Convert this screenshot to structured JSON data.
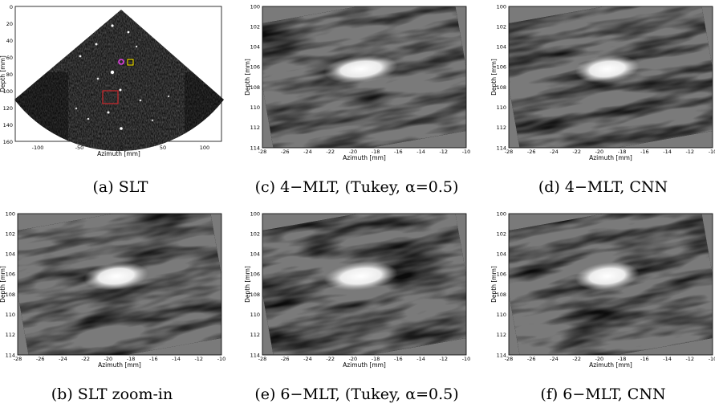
{
  "colors": {
    "background": "#ffffff",
    "image_gray": "#505050",
    "roi_box": "#c0282d",
    "marker_yellow": "#f2e20b",
    "marker_magenta": "#e23fe3"
  },
  "panels": [
    {
      "id": "a",
      "caption": "(a) SLT",
      "xlabel": "Azimuth [mm]",
      "ylabel": "Depth [mm]",
      "xticks": [
        "-100",
        "-50",
        "0",
        "50",
        "100"
      ],
      "yticks": [
        "0",
        "20",
        "40",
        "60",
        "80",
        "100",
        "120",
        "140",
        "160"
      ],
      "image": "sector ultrasound B-mode scan"
    },
    {
      "id": "c",
      "caption": "(c) 4−MLT, (Tukey, α=0.5)",
      "xlabel": "Azimuth [mm]",
      "ylabel": "Depth [mm]",
      "xticks": [
        "-28",
        "-26",
        "-24",
        "-22",
        "-20",
        "-18",
        "-16",
        "-14",
        "-12",
        "-10"
      ],
      "yticks": [
        "100",
        "102",
        "104",
        "106",
        "108",
        "110",
        "112",
        "114"
      ],
      "image": "zoomed speckle with bright target"
    },
    {
      "id": "d",
      "caption": "(d) 4−MLT, CNN",
      "xlabel": "Azimuth [mm]",
      "ylabel": "Depth [mm]",
      "xticks": [
        "-28",
        "-26",
        "-24",
        "-22",
        "-20",
        "-18",
        "-16",
        "-14",
        "-12",
        "-10"
      ],
      "yticks": [
        "100",
        "102",
        "104",
        "106",
        "108",
        "110",
        "112",
        "114"
      ],
      "image": "zoomed speckle with bright target"
    },
    {
      "id": "b",
      "caption": "(b) SLT zoom-in",
      "xlabel": "Azimuth [mm]",
      "ylabel": "Depth [mm]",
      "xticks": [
        "-28",
        "-26",
        "-24",
        "-22",
        "-20",
        "-18",
        "-16",
        "-14",
        "-12",
        "-10"
      ],
      "yticks": [
        "100",
        "102",
        "104",
        "106",
        "108",
        "110",
        "112",
        "114"
      ],
      "image": "zoomed speckle with bright target"
    },
    {
      "id": "e",
      "caption": "(e) 6−MLT, (Tukey, α=0.5)",
      "xlabel": "Azimuth [mm]",
      "ylabel": "Depth [mm]",
      "xticks": [
        "-28",
        "-26",
        "-24",
        "-22",
        "-20",
        "-18",
        "-16",
        "-14",
        "-12",
        "-10"
      ],
      "yticks": [
        "100",
        "102",
        "104",
        "106",
        "108",
        "110",
        "112",
        "114"
      ],
      "image": "zoomed speckle with bright target"
    },
    {
      "id": "f",
      "caption": "(f) 6−MLT, CNN",
      "xlabel": "Azimuth [mm]",
      "ylabel": "Depth [mm]",
      "xticks": [
        "-28",
        "-26",
        "-24",
        "-22",
        "-20",
        "-18",
        "-16",
        "-14",
        "-12",
        "-10"
      ],
      "yticks": [
        "100",
        "102",
        "104",
        "106",
        "108",
        "110",
        "112",
        "114"
      ],
      "image": "zoomed speckle with bright target"
    }
  ]
}
